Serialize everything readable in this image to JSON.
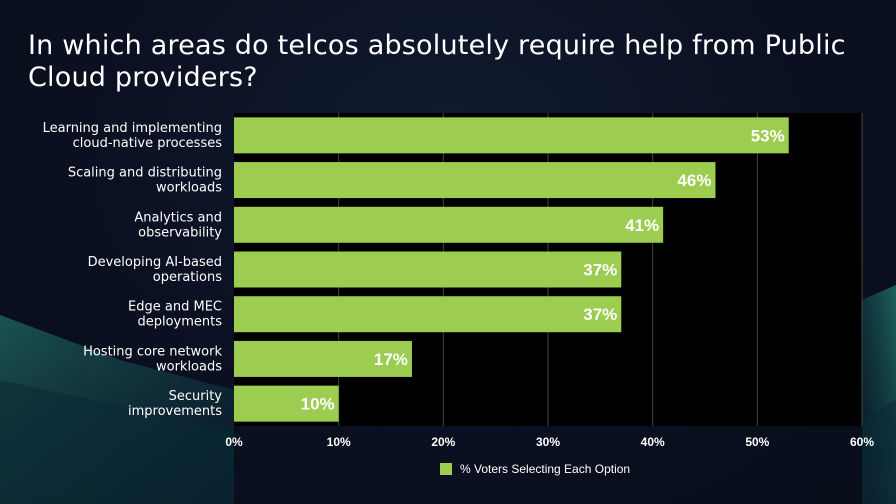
{
  "slide": {
    "title": "In which areas do telcos absolutely require help from Public Cloud providers?"
  },
  "colors": {
    "bar": "#9ccc50",
    "plot_background": "#000000",
    "gridline": "#444444",
    "text": "#ffffff"
  },
  "chart_data": {
    "type": "bar",
    "orientation": "horizontal",
    "title": "In which areas do telcos absolutely require help from Public Cloud providers?",
    "categories": [
      [
        "Learning and implementing",
        "cloud-native processes"
      ],
      [
        "Scaling and distributing",
        "workloads"
      ],
      [
        "Analytics and",
        "observability"
      ],
      [
        "Developing AI-based",
        "operations"
      ],
      [
        "Edge and MEC",
        "deployments"
      ],
      [
        "Hosting core network",
        "workloads"
      ],
      [
        "Security",
        "improvements"
      ]
    ],
    "series": [
      {
        "name": "% Voters Selecting Each Option",
        "values": [
          53,
          46,
          41,
          37,
          37,
          17,
          10
        ],
        "labels": [
          "53%",
          "46%",
          "41%",
          "37%",
          "37%",
          "17%",
          "10%"
        ]
      }
    ],
    "xlim": [
      0,
      60
    ],
    "x_ticks": [
      0,
      10,
      20,
      30,
      40,
      50,
      60
    ],
    "x_tick_labels": [
      "0%",
      "10%",
      "20%",
      "30%",
      "40%",
      "50%",
      "60%"
    ],
    "grid": "vertical",
    "legend": "bottom-center"
  }
}
